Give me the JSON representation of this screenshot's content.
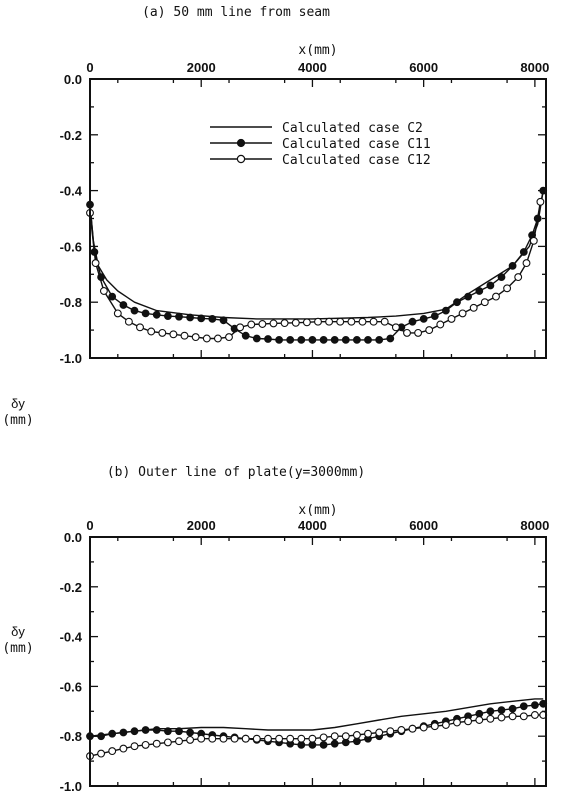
{
  "chart_data": [
    {
      "type": "line",
      "title": "(a) 50 mm line from seam",
      "xlabel": "x(mm)",
      "ylabel": "δy",
      "yunit": "(mm)",
      "xlim": [
        0,
        8200
      ],
      "ylim": [
        -1.0,
        0.0
      ],
      "xticks": [
        "0",
        "2000",
        "4000",
        "6000",
        "8000"
      ],
      "yticks": [
        "0.0",
        "-0.2",
        "-0.4",
        "-0.6",
        "-0.8",
        "-1.0"
      ],
      "legend_position": "top-center",
      "series": [
        {
          "name": "Calculated case C2",
          "marker": "none",
          "x": [
            0,
            60,
            150,
            300,
            500,
            800,
            1200,
            1800,
            2400,
            3000,
            4000,
            5000,
            5500,
            6000,
            6400,
            6800,
            7200,
            7600,
            7900,
            8050,
            8150
          ],
          "y": [
            -0.45,
            -0.58,
            -0.67,
            -0.72,
            -0.76,
            -0.8,
            -0.83,
            -0.845,
            -0.855,
            -0.86,
            -0.86,
            -0.855,
            -0.85,
            -0.84,
            -0.825,
            -0.77,
            -0.72,
            -0.67,
            -0.6,
            -0.52,
            -0.4
          ]
        },
        {
          "name": "Calculated case C11",
          "marker": "filled-circle",
          "x": [
            0,
            80,
            200,
            400,
            600,
            800,
            1000,
            1200,
            1400,
            1600,
            1800,
            2000,
            2200,
            2400,
            2600,
            2800,
            3000,
            3200,
            3400,
            3600,
            3800,
            4000,
            4200,
            4400,
            4600,
            4800,
            5000,
            5200,
            5400,
            5600,
            5800,
            6000,
            6200,
            6400,
            6600,
            6800,
            7000,
            7200,
            7400,
            7600,
            7800,
            7950,
            8050,
            8150
          ],
          "y": [
            -0.45,
            -0.62,
            -0.71,
            -0.78,
            -0.81,
            -0.83,
            -0.84,
            -0.845,
            -0.85,
            -0.852,
            -0.855,
            -0.858,
            -0.86,
            -0.865,
            -0.895,
            -0.92,
            -0.93,
            -0.932,
            -0.935,
            -0.935,
            -0.935,
            -0.935,
            -0.935,
            -0.935,
            -0.935,
            -0.935,
            -0.935,
            -0.935,
            -0.93,
            -0.89,
            -0.87,
            -0.86,
            -0.85,
            -0.83,
            -0.8,
            -0.78,
            -0.76,
            -0.74,
            -0.71,
            -0.67,
            -0.62,
            -0.56,
            -0.5,
            -0.4
          ]
        },
        {
          "name": "Calculated case C12",
          "marker": "open-circle",
          "x": [
            0,
            100,
            250,
            500,
            700,
            900,
            1100,
            1300,
            1500,
            1700,
            1900,
            2100,
            2300,
            2500,
            2700,
            2900,
            3100,
            3300,
            3500,
            3700,
            3900,
            4100,
            4300,
            4500,
            4700,
            4900,
            5100,
            5300,
            5500,
            5700,
            5900,
            6100,
            6300,
            6500,
            6700,
            6900,
            7100,
            7300,
            7500,
            7700,
            7850,
            7980,
            8100
          ],
          "y": [
            -0.48,
            -0.66,
            -0.76,
            -0.84,
            -0.87,
            -0.89,
            -0.905,
            -0.91,
            -0.915,
            -0.92,
            -0.925,
            -0.93,
            -0.93,
            -0.925,
            -0.89,
            -0.88,
            -0.878,
            -0.876,
            -0.875,
            -0.874,
            -0.872,
            -0.87,
            -0.87,
            -0.87,
            -0.87,
            -0.87,
            -0.87,
            -0.87,
            -0.89,
            -0.91,
            -0.91,
            -0.9,
            -0.88,
            -0.86,
            -0.84,
            -0.82,
            -0.8,
            -0.78,
            -0.75,
            -0.71,
            -0.66,
            -0.58,
            -0.44
          ]
        }
      ]
    },
    {
      "type": "line",
      "title": "(b) Outer line of plate(y=3000mm)",
      "xlabel": "x(mm)",
      "ylabel": "δy",
      "yunit": "(mm)",
      "xlim": [
        0,
        8200
      ],
      "ylim": [
        -1.0,
        0.0
      ],
      "xticks": [
        "0",
        "2000",
        "4000",
        "6000",
        "8000"
      ],
      "yticks": [
        "0.0",
        "-0.2",
        "-0.4",
        "-0.6",
        "-0.8",
        "-1.0"
      ],
      "series": [
        {
          "name": "Calculated case C2",
          "marker": "none",
          "x": [
            0,
            400,
            800,
            1200,
            1600,
            2000,
            2400,
            2800,
            3200,
            3600,
            4000,
            4400,
            4800,
            5200,
            5600,
            6000,
            6400,
            6800,
            7200,
            7600,
            8000,
            8150
          ],
          "y": [
            -0.8,
            -0.79,
            -0.78,
            -0.77,
            -0.77,
            -0.765,
            -0.765,
            -0.77,
            -0.775,
            -0.775,
            -0.775,
            -0.765,
            -0.75,
            -0.735,
            -0.72,
            -0.71,
            -0.7,
            -0.685,
            -0.67,
            -0.66,
            -0.65,
            -0.65
          ]
        },
        {
          "name": "Calculated case C11",
          "marker": "filled-circle",
          "x": [
            0,
            200,
            400,
            600,
            800,
            1000,
            1200,
            1400,
            1600,
            1800,
            2000,
            2200,
            2400,
            2600,
            2800,
            3000,
            3200,
            3400,
            3600,
            3800,
            4000,
            4200,
            4400,
            4600,
            4800,
            5000,
            5200,
            5400,
            5600,
            5800,
            6000,
            6200,
            6400,
            6600,
            6800,
            7000,
            7200,
            7400,
            7600,
            7800,
            8000,
            8150
          ],
          "y": [
            -0.8,
            -0.8,
            -0.79,
            -0.785,
            -0.78,
            -0.775,
            -0.775,
            -0.78,
            -0.78,
            -0.785,
            -0.79,
            -0.795,
            -0.8,
            -0.805,
            -0.81,
            -0.815,
            -0.82,
            -0.825,
            -0.83,
            -0.835,
            -0.835,
            -0.835,
            -0.83,
            -0.825,
            -0.82,
            -0.81,
            -0.8,
            -0.79,
            -0.78,
            -0.77,
            -0.76,
            -0.75,
            -0.74,
            -0.73,
            -0.72,
            -0.71,
            -0.7,
            -0.695,
            -0.69,
            -0.68,
            -0.675,
            -0.67
          ]
        },
        {
          "name": "Calculated case C12",
          "marker": "open-circle",
          "x": [
            0,
            200,
            400,
            600,
            800,
            1000,
            1200,
            1400,
            1600,
            1800,
            2000,
            2200,
            2400,
            2600,
            2800,
            3000,
            3200,
            3400,
            3600,
            3800,
            4000,
            4200,
            4400,
            4600,
            4800,
            5000,
            5200,
            5400,
            5600,
            5800,
            6000,
            6200,
            6400,
            6600,
            6800,
            7000,
            7200,
            7400,
            7600,
            7800,
            8000,
            8150
          ],
          "y": [
            -0.88,
            -0.87,
            -0.86,
            -0.85,
            -0.84,
            -0.835,
            -0.83,
            -0.825,
            -0.82,
            -0.815,
            -0.81,
            -0.81,
            -0.81,
            -0.81,
            -0.81,
            -0.81,
            -0.81,
            -0.81,
            -0.81,
            -0.81,
            -0.81,
            -0.805,
            -0.8,
            -0.8,
            -0.795,
            -0.79,
            -0.785,
            -0.78,
            -0.775,
            -0.77,
            -0.765,
            -0.76,
            -0.755,
            -0.745,
            -0.74,
            -0.735,
            -0.73,
            -0.725,
            -0.72,
            -0.72,
            -0.715,
            -0.715
          ]
        }
      ]
    }
  ]
}
